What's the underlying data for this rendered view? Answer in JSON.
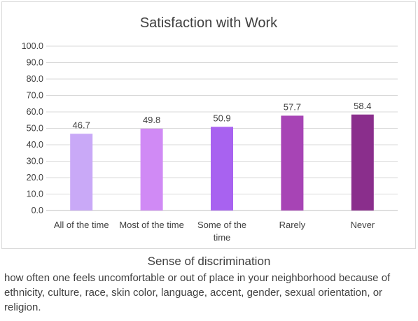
{
  "chart_data": {
    "type": "bar",
    "title": "Satisfaction with Work",
    "categories": [
      "All of the time",
      "Most of the time",
      "Some of the time",
      "Rarely",
      "Never"
    ],
    "category_label_lines": [
      [
        "All of the time"
      ],
      [
        "Most of the time"
      ],
      [
        "Some of the",
        "time"
      ],
      [
        "Rarely"
      ],
      [
        "Never"
      ]
    ],
    "values": [
      46.7,
      49.8,
      50.9,
      57.7,
      58.4
    ],
    "data_labels": [
      "46.7",
      "49.8",
      "50.9",
      "57.7",
      "58.4"
    ],
    "bar_colors": [
      "#c9a9f7",
      "#d08af5",
      "#a862f0",
      "#a744b5",
      "#8a2e8c"
    ],
    "ylim": [
      0,
      100
    ],
    "yticks": [
      0,
      10,
      20,
      30,
      40,
      50,
      60,
      70,
      80,
      90,
      100
    ],
    "ytick_labels": [
      "0.0",
      "10.0",
      "20.0",
      "30.0",
      "40.0",
      "50.0",
      "60.0",
      "70.0",
      "80.0",
      "90.0",
      "100.0"
    ],
    "grid": true,
    "grid_color": "#d9d9d9",
    "text_color": "#404040"
  },
  "caption": {
    "title": "Sense of discrimination",
    "body": "how often one feels uncomfortable or out of place in your neighborhood because of ethnicity, culture, race, skin color, language, accent, gender, sexual orientation, or religion."
  }
}
